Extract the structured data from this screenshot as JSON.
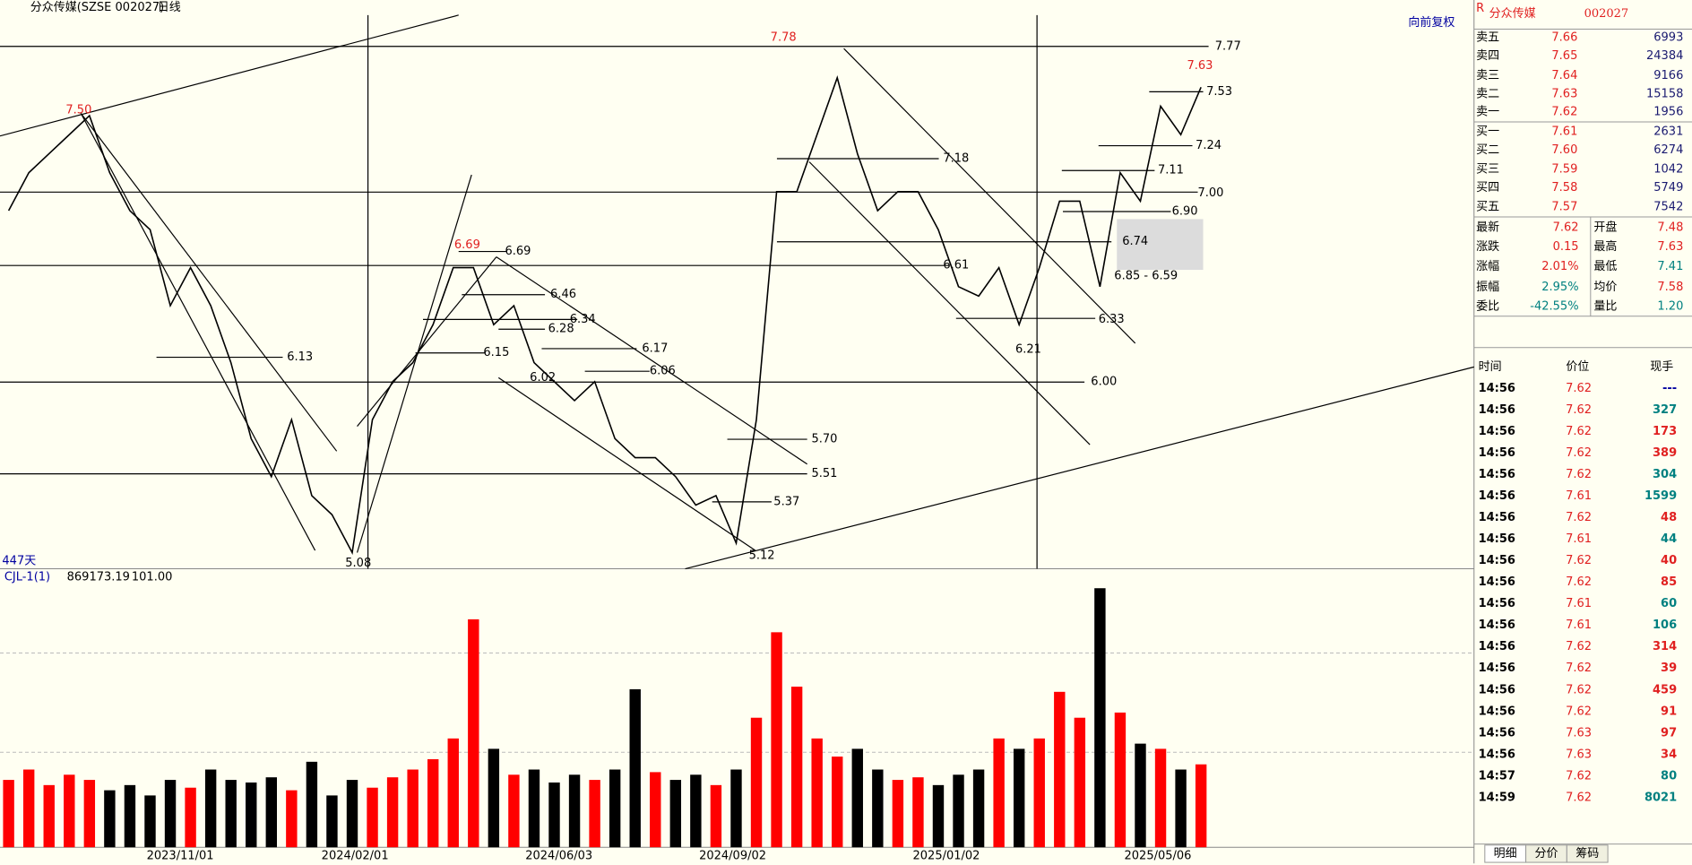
{
  "header": {
    "symbol": "分众传媒(SZSE 002027)",
    "period": "日线",
    "adjust": "向前复权",
    "days": "447天"
  },
  "chart_data": [
    {
      "type": "line",
      "series": [
        {
          "color": "#000000",
          "values": [
            6.9,
            7.1,
            7.2,
            7.3,
            7.4,
            7.1,
            6.9,
            6.8,
            6.4,
            6.6,
            6.4,
            6.1,
            5.7,
            5.5,
            5.8,
            5.4,
            5.3,
            5.1,
            5.8,
            6.0,
            6.1,
            6.3,
            6.6,
            6.6,
            6.3,
            6.4,
            6.1,
            6.0,
            5.9,
            6.0,
            5.7,
            5.6,
            5.6,
            5.5,
            5.35,
            5.4,
            5.15,
            5.8,
            7.0,
            7.0,
            7.3,
            7.6,
            7.2,
            6.9,
            7.0,
            7.0,
            6.8,
            6.5,
            6.45,
            6.6,
            6.3,
            6.6,
            6.95,
            6.95,
            6.5,
            7.1,
            6.95,
            7.45,
            7.3,
            7.55
          ]
        }
      ],
      "annotations": [
        "7.50",
        "7.78",
        "7.77",
        "7.63",
        "7.53",
        "7.24",
        "7.18",
        "7.11",
        "7.00",
        "6.90",
        "6.74",
        "6.69",
        "6.69",
        "6.61",
        "6.85 - 6.59",
        "6.46",
        "6.34",
        "6.33",
        "6.28",
        "6.21",
        "6.17",
        "6.15",
        "6.13",
        "6.06",
        "6.02",
        "6.00",
        "5.70",
        "5.51",
        "5.37",
        "5.12",
        "5.08"
      ]
    },
    {
      "type": "bar",
      "title": "CJL-1(1)",
      "readouts": [
        "869173.19",
        "101.00"
      ],
      "up_color": "#ff0000",
      "down_color": "#000000",
      "values": [
        260000,
        300000,
        240000,
        280000,
        260000,
        220000,
        240000,
        200000,
        260000,
        230000,
        300000,
        260000,
        250000,
        270000,
        220000,
        330000,
        200000,
        260000,
        230000,
        270000,
        300000,
        340000,
        420000,
        880000,
        380000,
        280000,
        300000,
        250000,
        280000,
        260000,
        300000,
        610000,
        290000,
        260000,
        280000,
        240000,
        300000,
        500000,
        830000,
        620000,
        420000,
        350000,
        380000,
        300000,
        260000,
        270000,
        240000,
        280000,
        300000,
        420000,
        380000,
        420000,
        600000,
        500000,
        1000000,
        520000,
        400000,
        380000,
        300000,
        320000
      ]
    }
  ],
  "date_axis": [
    "2023/11/01",
    "2024/02/01",
    "2024/06/03",
    "2024/09/02",
    "2025/01/02",
    "2025/05/06"
  ],
  "quote": {
    "badge": "R",
    "name": "分众传媒",
    "code": "002027",
    "book": [
      [
        "卖五",
        "7.66",
        "6993"
      ],
      [
        "卖四",
        "7.65",
        "24384"
      ],
      [
        "卖三",
        "7.64",
        "9166"
      ],
      [
        "卖二",
        "7.63",
        "15158"
      ],
      [
        "卖一",
        "7.62",
        "1956"
      ],
      [
        "买一",
        "7.61",
        "2631"
      ],
      [
        "买二",
        "7.60",
        "6274"
      ],
      [
        "买三",
        "7.59",
        "1042"
      ],
      [
        "买四",
        "7.58",
        "5749"
      ],
      [
        "买五",
        "7.57",
        "7542"
      ]
    ],
    "stats": [
      [
        "最新",
        "7.62",
        "开盘",
        "7.48"
      ],
      [
        "涨跌",
        "0.15",
        "最高",
        "7.63"
      ],
      [
        "涨幅",
        "2.01%",
        "最低",
        "7.41"
      ],
      [
        "振幅",
        "2.95%",
        "均价",
        "7.58"
      ],
      [
        "委比",
        "-42.55%",
        "量比",
        "1.20"
      ]
    ],
    "trades_header": [
      "时间",
      "价位",
      "现手"
    ],
    "trades": [
      [
        "14:56",
        "7.62",
        "---"
      ],
      [
        "14:56",
        "7.62",
        "327"
      ],
      [
        "14:56",
        "7.62",
        "173"
      ],
      [
        "14:56",
        "7.62",
        "389"
      ],
      [
        "14:56",
        "7.62",
        "304"
      ],
      [
        "14:56",
        "7.61",
        "1599"
      ],
      [
        "14:56",
        "7.62",
        "48"
      ],
      [
        "14:56",
        "7.61",
        "44"
      ],
      [
        "14:56",
        "7.62",
        "40"
      ],
      [
        "14:56",
        "7.62",
        "85"
      ],
      [
        "14:56",
        "7.61",
        "60"
      ],
      [
        "14:56",
        "7.61",
        "106"
      ],
      [
        "14:56",
        "7.62",
        "314"
      ],
      [
        "14:56",
        "7.62",
        "39"
      ],
      [
        "14:56",
        "7.62",
        "459"
      ],
      [
        "14:56",
        "7.62",
        "91"
      ],
      [
        "14:56",
        "7.63",
        "97"
      ],
      [
        "14:56",
        "7.63",
        "34"
      ],
      [
        "14:57",
        "7.62",
        "80"
      ],
      [
        "14:59",
        "7.62",
        "8021"
      ]
    ]
  },
  "tabs": [
    "明细",
    "分价",
    "筹码"
  ]
}
